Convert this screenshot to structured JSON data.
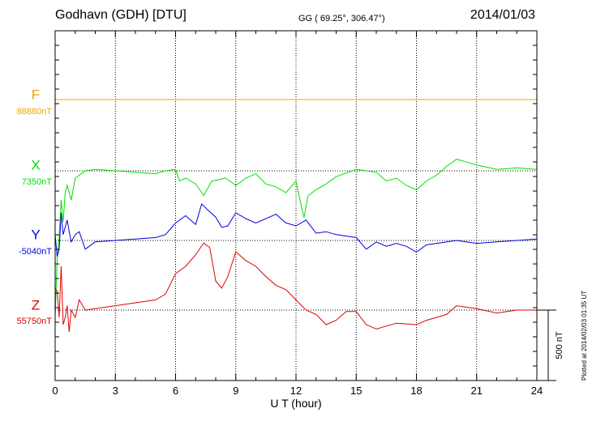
{
  "header": {
    "station": "Godhavn (GDH)  [DTU]",
    "coords": "GG ( 69.25°, 306.47°)",
    "date": "2014/01/03",
    "plotted": "Plotted at 2014/02/03 01:35 UT"
  },
  "chart_data": {
    "type": "line",
    "title": "Godhavn (GDH)  [DTU]",
    "xlabel": "U T (hour)",
    "ylabel": "",
    "xlim": [
      0,
      24
    ],
    "xticks": [
      "0",
      "3",
      "6",
      "9",
      "12",
      "15",
      "18",
      "21",
      "24"
    ],
    "grid": true,
    "scale_bar": {
      "label": "500 nT",
      "value_nT": 500
    },
    "series": [
      {
        "name": "F",
        "baseline_label": "88880nT",
        "baseline_nT": 88880,
        "color": "#f5a500",
        "x": [
          0,
          24
        ],
        "y": [
          88880,
          88880
        ]
      },
      {
        "name": "X",
        "baseline_label": "7350nT",
        "baseline_nT": 7350,
        "color": "#00e000",
        "x": [
          0,
          0.1,
          0.2,
          0.3,
          0.4,
          0.5,
          0.6,
          0.8,
          1,
          1.5,
          2,
          3,
          4,
          5,
          5.5,
          6,
          6.2,
          6.5,
          7,
          7.4,
          7.8,
          8.5,
          9,
          9.5,
          10,
          10.5,
          11,
          11.5,
          12,
          12.2,
          12.4,
          12.6,
          13,
          13.5,
          14,
          15,
          16,
          16.5,
          17,
          17.5,
          18,
          18.5,
          19,
          19.5,
          20,
          20.5,
          21,
          22,
          23,
          24
        ],
        "y": [
          6350,
          6750,
          6900,
          7150,
          7000,
          7200,
          7250,
          7150,
          7300,
          7350,
          7360,
          7350,
          7340,
          7330,
          7350,
          7360,
          7280,
          7300,
          7260,
          7180,
          7280,
          7300,
          7250,
          7300,
          7330,
          7260,
          7240,
          7200,
          7280,
          7150,
          7030,
          7180,
          7220,
          7260,
          7310,
          7360,
          7340,
          7280,
          7300,
          7250,
          7220,
          7280,
          7320,
          7380,
          7430,
          7410,
          7390,
          7360,
          7370,
          7360
        ]
      },
      {
        "name": "Y",
        "baseline_label": "-5040nT",
        "baseline_nT": -5040,
        "color": "#0000e0",
        "x": [
          0,
          0.1,
          0.2,
          0.3,
          0.4,
          0.5,
          0.6,
          0.8,
          1,
          1.2,
          1.5,
          2,
          3,
          4,
          5,
          5.5,
          6,
          6.5,
          7,
          7.3,
          7.6,
          8,
          8.3,
          8.6,
          9,
          9.5,
          10,
          11,
          11.5,
          12,
          12.5,
          13,
          13.5,
          14,
          15,
          15.5,
          16,
          16.5,
          17,
          17.5,
          18,
          18.5,
          19,
          20,
          21,
          22,
          23,
          24
        ],
        "y": [
          -5000,
          -5150,
          -5100,
          -4850,
          -5000,
          -4950,
          -4900,
          -5050,
          -5000,
          -4980,
          -5100,
          -5050,
          -5040,
          -5030,
          -5020,
          -5000,
          -4920,
          -4870,
          -4930,
          -4790,
          -4830,
          -4880,
          -4950,
          -4940,
          -4850,
          -4890,
          -4920,
          -4860,
          -4920,
          -4940,
          -4900,
          -4990,
          -4980,
          -5000,
          -5020,
          -5100,
          -5050,
          -5080,
          -5060,
          -5080,
          -5120,
          -5070,
          -5060,
          -5040,
          -5060,
          -5050,
          -5040,
          -5030
        ]
      },
      {
        "name": "Z",
        "baseline_label": "55750nT",
        "baseline_nT": 55750,
        "color": "#e00000",
        "x": [
          0,
          0.1,
          0.2,
          0.3,
          0.4,
          0.5,
          0.6,
          0.7,
          0.8,
          1,
          1.2,
          1.5,
          2,
          3,
          4,
          5,
          5.5,
          6,
          6.5,
          7,
          7.4,
          7.7,
          8,
          8.3,
          8.6,
          9,
          9.5,
          10,
          10.5,
          11,
          11.5,
          12,
          12.5,
          13,
          13.5,
          14,
          14.5,
          15,
          15.5,
          16,
          17,
          18,
          18.5,
          19,
          19.5,
          20,
          21,
          22,
          23,
          24
        ],
        "y": [
          55900,
          55880,
          55700,
          56050,
          55650,
          55700,
          55780,
          55600,
          55750,
          55700,
          55820,
          55750,
          55760,
          55780,
          55800,
          55820,
          55860,
          56000,
          56050,
          56130,
          56210,
          56180,
          55950,
          55900,
          55980,
          56150,
          56090,
          56050,
          55980,
          55920,
          55890,
          55820,
          55750,
          55720,
          55650,
          55680,
          55740,
          55740,
          55650,
          55620,
          55660,
          55650,
          55680,
          55700,
          55720,
          55780,
          55760,
          55730,
          55750,
          55750
        ]
      }
    ]
  }
}
